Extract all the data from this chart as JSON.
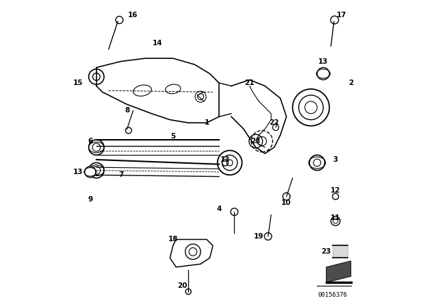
{
  "background_color": "#ffffff",
  "image_code": "00156376",
  "line_color": "#000000"
}
